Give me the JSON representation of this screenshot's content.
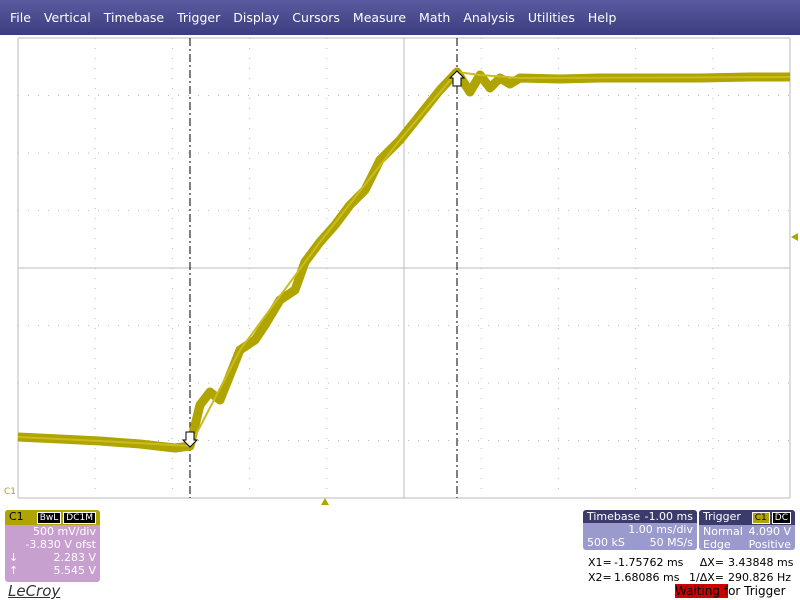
{
  "menu": [
    "File",
    "Vertical",
    "Timebase",
    "Trigger",
    "Display",
    "Cursors",
    "Measure",
    "Math",
    "Analysis",
    "Utilities",
    "Help"
  ],
  "trace_label": "C1",
  "channel": {
    "label": "C1",
    "bandwidth": "BwL",
    "coupling": "DC1M",
    "scale": "500 mV/div",
    "offset": "-3.830 V ofst",
    "cursor1": "2.283 V",
    "cursor2": "5.545 V"
  },
  "timebase": {
    "title": "Timebase",
    "delay": "-1.00 ms",
    "scale": "1.00 ms/div",
    "samples": "500 kS",
    "rate": "50 MS/s"
  },
  "trigger": {
    "title": "Trigger",
    "channel": "C1",
    "coupling": "DC",
    "mode": "Normal",
    "level": "4.090 V",
    "type": "Edge",
    "slope": "Positive"
  },
  "cursors": {
    "x1_label": "X1=",
    "x1": "-1.75762 ms",
    "dx_label": "ΔX=",
    "dx": "3.43848 ms",
    "x2_label": "X2=",
    "x2": "1.68086 ms",
    "inv_label": "1/ΔX=",
    "inv": "290.826 Hz"
  },
  "status": "Waiting for Trigger",
  "brand": "LeCroy"
}
